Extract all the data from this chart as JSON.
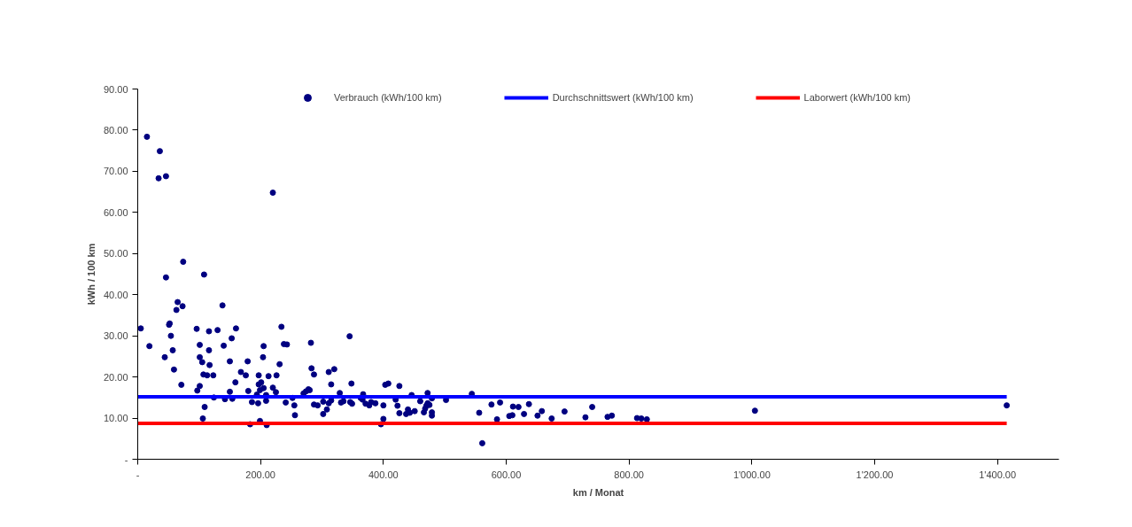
{
  "chart_data": {
    "type": "scatter",
    "xlabel": "km / Monat",
    "ylabel": "kWh / 100 km",
    "xlim": [
      0,
      1500
    ],
    "xticks": [
      {
        "value": 0,
        "label": "-"
      },
      {
        "value": 200,
        "label": "200.00"
      },
      {
        "value": 400,
        "label": "400.00"
      },
      {
        "value": 600,
        "label": "600.00"
      },
      {
        "value": 800,
        "label": "800.00"
      },
      {
        "value": 1000,
        "label": "1'000.00"
      },
      {
        "value": 1200,
        "label": "1'200.00"
      },
      {
        "value": 1400,
        "label": "1'400.00"
      }
    ],
    "ylim": [
      0,
      90
    ],
    "yticks": [
      {
        "value": 0,
        "label": "-"
      },
      {
        "value": 10,
        "label": "10.00"
      },
      {
        "value": 20,
        "label": "20.00"
      },
      {
        "value": 30,
        "label": "30.00"
      },
      {
        "value": 40,
        "label": "40.00"
      },
      {
        "value": 50,
        "label": "50.00"
      },
      {
        "value": 60,
        "label": "60.00"
      },
      {
        "value": 70,
        "label": "70.00"
      },
      {
        "value": 80,
        "label": "80.00"
      },
      {
        "value": 90,
        "label": "90.00"
      }
    ],
    "grid": false,
    "legend": "top",
    "series": [
      {
        "name": "Verbrauch (kWh/100 km)",
        "marker": "circle",
        "color": "#000080",
        "x": [
          5,
          15,
          19,
          36,
          34,
          46,
          46,
          44,
          51,
          52,
          54,
          57,
          59,
          63,
          65,
          73,
          71,
          74,
          96,
          101,
          101,
          105,
          107,
          113,
          97,
          101,
          106,
          109,
          108,
          116,
          116,
          117,
          123,
          124,
          130,
          138,
          140,
          142,
          150,
          150,
          154,
          153,
          159,
          160,
          168,
          176,
          179,
          180,
          183,
          186,
          194,
          197,
          201,
          199,
          205,
          197,
          196,
          199,
          204,
          205,
          209,
          209,
          210,
          213,
          220,
          220,
          225,
          226,
          231,
          234,
          238,
          243,
          241,
          252,
          255,
          256,
          270,
          274,
          278,
          280,
          282,
          283,
          287,
          287,
          293,
          302,
          302,
          308,
          311,
          315,
          311,
          320,
          315,
          329,
          331,
          335,
          345,
          348,
          346,
          349,
          363,
          367,
          366,
          371,
          377,
          380,
          387,
          400,
          396,
          400,
          403,
          408,
          420,
          423,
          426,
          426,
          437,
          440,
          443,
          446,
          451,
          460,
          466,
          468,
          470,
          472,
          475,
          472,
          479,
          479,
          479,
          502,
          544,
          556,
          561,
          576,
          585,
          590,
          605,
          610,
          611,
          620,
          629,
          637,
          651,
          658,
          674,
          695,
          729,
          740,
          765,
          772,
          813,
          820,
          829,
          1005,
          1415
        ],
        "values": [
          31.8,
          78.4,
          27.5,
          74.9,
          68.3,
          68.8,
          44.2,
          24.8,
          32.7,
          33.0,
          30.0,
          26.5,
          21.8,
          36.3,
          38.2,
          37.2,
          18.1,
          48.0,
          31.7,
          27.8,
          24.8,
          23.6,
          20.6,
          20.4,
          16.7,
          17.8,
          9.9,
          12.7,
          44.9,
          31.1,
          26.5,
          22.9,
          20.4,
          15.0,
          31.4,
          37.4,
          27.6,
          14.6,
          23.8,
          16.4,
          14.7,
          29.4,
          18.7,
          31.8,
          21.2,
          20.4,
          23.8,
          16.6,
          8.5,
          13.9,
          15.7,
          18.2,
          18.7,
          16.8,
          17.3,
          20.4,
          13.6,
          9.3,
          24.8,
          27.5,
          15.6,
          14.2,
          8.3,
          20.2,
          64.8,
          17.4,
          16.3,
          20.4,
          23.1,
          32.2,
          28.0,
          27.9,
          13.8,
          14.9,
          13.1,
          10.7,
          16.0,
          16.5,
          17.0,
          16.8,
          28.3,
          22.1,
          20.6,
          13.3,
          13.1,
          14.0,
          11.0,
          12.1,
          13.6,
          14.3,
          21.2,
          21.9,
          18.2,
          16.1,
          13.8,
          14.1,
          29.9,
          18.4,
          13.9,
          13.5,
          14.9,
          15.8,
          14.5,
          13.5,
          13.1,
          13.9,
          13.6,
          13.1,
          8.5,
          9.8,
          18.1,
          18.4,
          14.5,
          13.0,
          17.8,
          11.2,
          11.0,
          12.1,
          11.3,
          15.6,
          11.7,
          14.1,
          11.4,
          12.3,
          13.0,
          13.6,
          13.2,
          16.1,
          14.8,
          11.4,
          10.6,
          14.4,
          15.9,
          11.3,
          3.9,
          13.3,
          9.7,
          13.8,
          10.5,
          10.7,
          12.8,
          12.7,
          11.0,
          13.4,
          10.6,
          11.7,
          9.9,
          11.6,
          10.2,
          12.7,
          10.3,
          10.6,
          10.0,
          9.9,
          9.7,
          11.8,
          13.1
        ]
      },
      {
        "name": "Durchschnittswert (kWh/100 km)",
        "type": "line",
        "color": "#0000ff",
        "x": [
          0,
          1415
        ],
        "values": [
          15.2,
          15.2
        ]
      },
      {
        "name": "Laborwert (kWh/100 km)",
        "type": "line",
        "color": "#ff0000",
        "x": [
          0,
          1415
        ],
        "values": [
          8.7,
          8.7
        ]
      }
    ]
  }
}
